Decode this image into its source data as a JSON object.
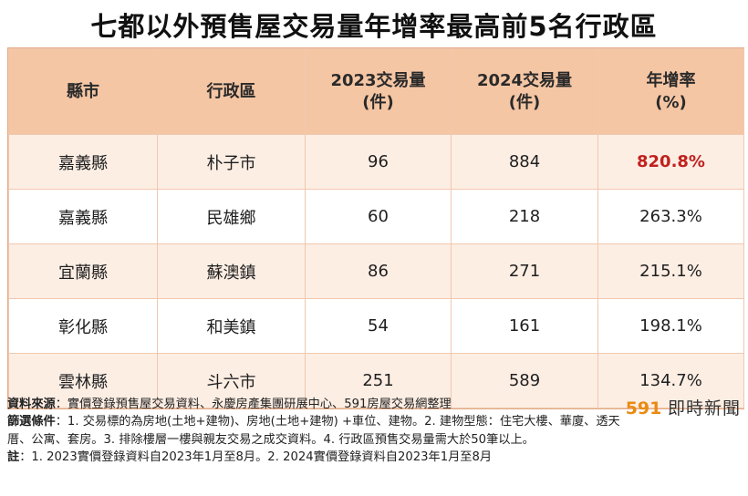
{
  "title": "七都以外預售屋交易量年增率最高前5名行政區",
  "table": {
    "headers": {
      "county": "縣市",
      "district": "行政區",
      "vol2023": "2023交易量",
      "vol2023_unit": "(件)",
      "vol2024": "2024交易量",
      "vol2024_unit": "(件)",
      "growth": "年增率",
      "growth_unit": "(%)"
    },
    "rows": [
      {
        "county": "嘉義縣",
        "district": "朴子市",
        "vol2023": "96",
        "vol2024": "884",
        "growth": "820.8%"
      },
      {
        "county": "嘉義縣",
        "district": "民雄鄉",
        "vol2023": "60",
        "vol2024": "218",
        "growth": "263.3%"
      },
      {
        "county": "宜蘭縣",
        "district": "蘇澳鎮",
        "vol2023": "86",
        "vol2024": "271",
        "growth": "215.1%"
      },
      {
        "county": "彰化縣",
        "district": "和美鎮",
        "vol2023": "54",
        "vol2024": "161",
        "growth": "198.1%"
      },
      {
        "county": "雲林縣",
        "district": "斗六市",
        "vol2023": "251",
        "vol2024": "589",
        "growth": "134.7%"
      }
    ],
    "highlight_color": "#c0221f"
  },
  "footer": {
    "source_label": "資料來源",
    "source_text": "：實價登錄預售屋交易資料、永慶房產集團研展中心、591房屋交易網整理",
    "filter_label": "篩選條件",
    "filter_text": "：1. 交易標的為房地(土地+建物)、房地(土地+建物) +車位、建物。2. 建物型態：住宅大樓、華廈、透天厝、公寓、套房。3. 排除樓層一樓與親友交易之成交資料。4. 行政區預售交易量需大於50筆以上。",
    "note_label": "註",
    "note_text": "：1. 2023實價登錄資料自2023年1月至8月。2. 2024實價登錄資料自2023年1月至8月"
  },
  "brand": {
    "num": "591",
    "name": "即時新聞"
  }
}
